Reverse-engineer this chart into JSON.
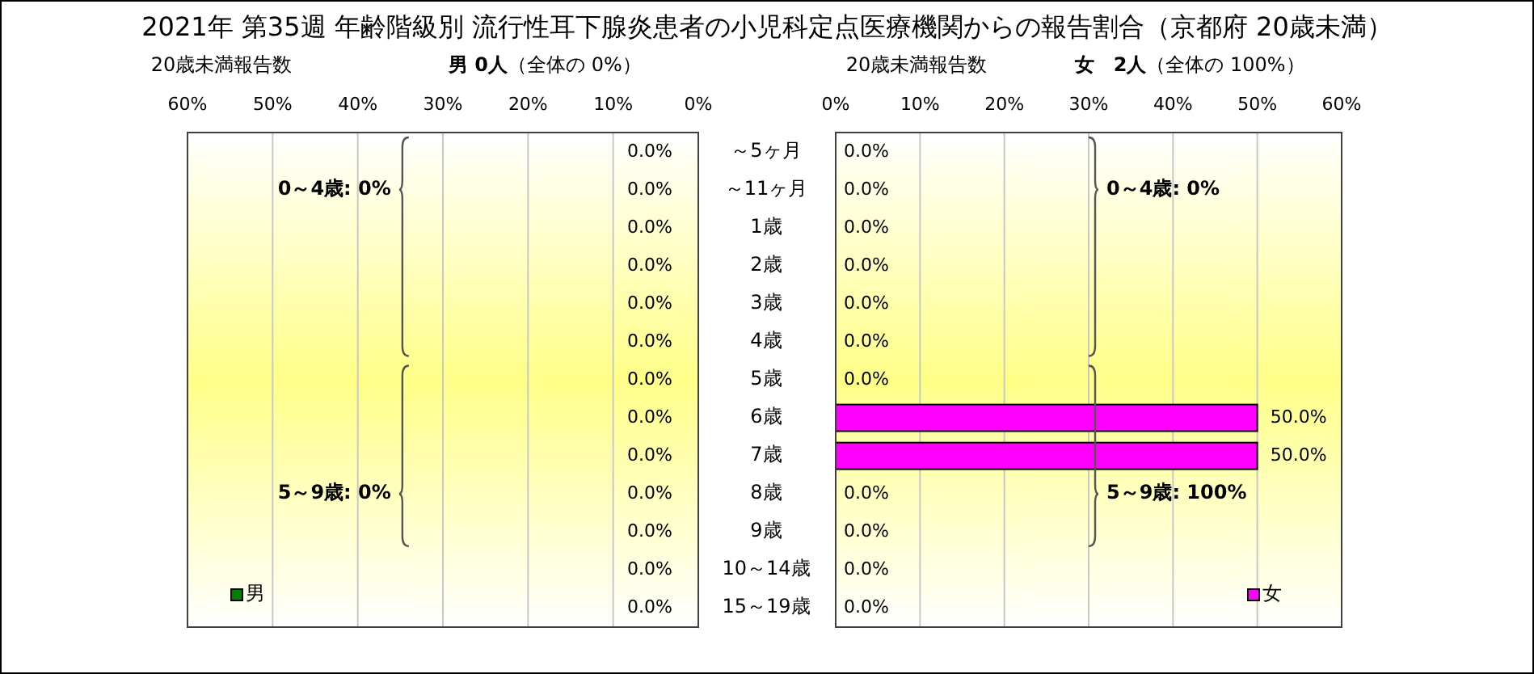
{
  "chart_data": [
    {
      "type": "bar",
      "orientation": "horizontal",
      "title": "2021年 第35週 年齢階級別 流行性耳下腺炎患者の小児科定点医療機関からの報告割合（京都府 20歳未満）",
      "xlabel": "20歳未満報告数",
      "subtitle": "**男 0人**（全体の 0%）",
      "categories": [
        "～5ヶ月",
        "～11ヶ月",
        "1歳",
        "2歳",
        "3歳",
        "4歳",
        "5歳",
        "6歳",
        "7歳",
        "8歳",
        "9歳",
        "10～14歳",
        "15～19歳"
      ],
      "series": [
        {
          "name": "男",
          "color": "#008000",
          "values": [
            0,
            0,
            0,
            0,
            0,
            0,
            0,
            0,
            0,
            0,
            0,
            0,
            0
          ],
          "value_labels": [
            "0.0%",
            "0.0%",
            "0.0%",
            "0.0%",
            "0.0%",
            "0.0%",
            "0.0%",
            "0.0%",
            "0.0%",
            "0.0%",
            "0.0%",
            "0.0%",
            "0.0%"
          ]
        }
      ],
      "xlim": [
        60,
        0
      ],
      "xticks": [
        {
          "value": 60,
          "label": "60%"
        },
        {
          "value": 50,
          "label": "50%"
        },
        {
          "value": 40,
          "label": "40%"
        },
        {
          "value": 30,
          "label": "30%"
        },
        {
          "value": 20,
          "label": "20%"
        },
        {
          "value": 10,
          "label": "10%"
        },
        {
          "value": 0,
          "label": "0%"
        }
      ],
      "grid": "x",
      "legend": "bottom left",
      "annotations": [
        "0～4歳: 0%",
        "5～9歳: 0%"
      ]
    },
    {
      "type": "bar",
      "orientation": "horizontal",
      "xlabel": "20歳未満報告数",
      "subtitle": "**女　2人**（全体の 100%）",
      "categories": [
        null,
        null,
        null,
        null,
        null,
        null,
        null,
        null,
        null,
        null,
        null,
        null,
        null
      ],
      "series": [
        {
          "name": "女",
          "color": "#ff00ff",
          "values": [
            0,
            0,
            0,
            0,
            0,
            0,
            0,
            50,
            50,
            0,
            0,
            0,
            0
          ],
          "value_labels": [
            "0.0%",
            "0.0%",
            "0.0%",
            "0.0%",
            "0.0%",
            "0.0%",
            "0.0%",
            "50.0%",
            "50.0%",
            "0.0%",
            "0.0%",
            "0.0%",
            "0.0%"
          ]
        }
      ],
      "xlim": [
        0,
        60
      ],
      "xticks": [
        {
          "value": 0,
          "label": "0%"
        },
        {
          "value": 10,
          "label": "10%"
        },
        {
          "value": 20,
          "label": "20%"
        },
        {
          "value": 30,
          "label": "30%"
        },
        {
          "value": 40,
          "label": "40%"
        },
        {
          "value": 50,
          "label": "50%"
        },
        {
          "value": 60,
          "label": "60%"
        }
      ],
      "grid": "x",
      "legend": "bottom right",
      "annotations": [
        "0～4歳: 0%",
        "5～9歳: 100%"
      ]
    }
  ]
}
